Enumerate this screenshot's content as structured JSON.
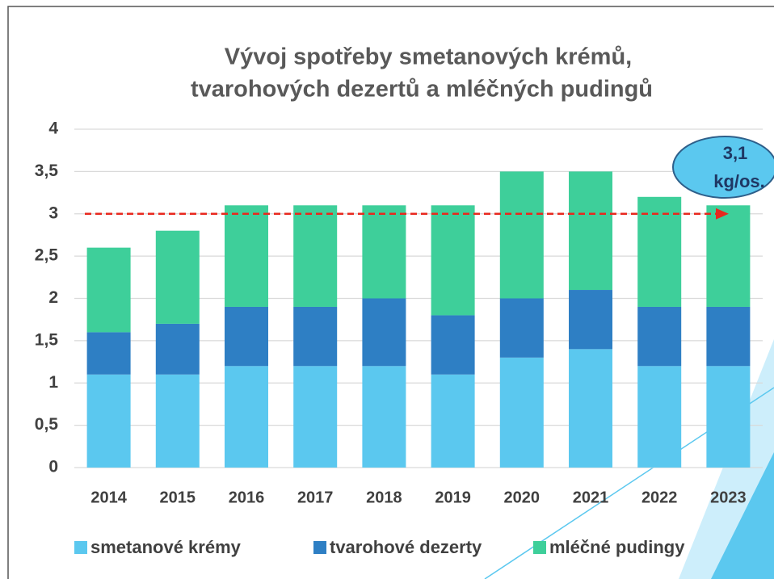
{
  "chart_data": {
    "type": "bar",
    "stacked": true,
    "title": [
      "Vývoj spotřeby smetanových krémů,",
      "tvarohových dezertů a mléčných pudingů"
    ],
    "categories": [
      "2014",
      "2015",
      "2016",
      "2017",
      "2018",
      "2019",
      "2020",
      "2021",
      "2022",
      "2023"
    ],
    "series": [
      {
        "name": "smetanové krémy",
        "color": "#5bc8ef",
        "values": [
          1.1,
          1.1,
          1.2,
          1.2,
          1.2,
          1.1,
          1.3,
          1.4,
          1.2,
          1.2
        ]
      },
      {
        "name": "tvarohové dezerty",
        "color": "#2e7fc4",
        "values": [
          0.5,
          0.6,
          0.7,
          0.7,
          0.8,
          0.7,
          0.7,
          0.7,
          0.7,
          0.7
        ]
      },
      {
        "name": "mléčné pudingy",
        "color": "#3ecf9a",
        "values": [
          1.0,
          1.1,
          1.2,
          1.2,
          1.1,
          1.3,
          1.5,
          1.4,
          1.3,
          1.2
        ]
      }
    ],
    "ylim": [
      0,
      4
    ],
    "yticks": [
      0,
      {
        "value": 0.5,
        "label": "0,5"
      },
      1,
      {
        "value": 1.5,
        "label": "1,5"
      },
      2,
      {
        "value": 2.5,
        "label": "2,5"
      },
      3,
      {
        "value": 3.5,
        "label": "3,5"
      },
      4
    ],
    "grid": true,
    "reference_line": {
      "value": 3,
      "color": "#e8281e"
    },
    "annotation": [
      "3,1",
      "kg/os."
    ],
    "legend": "bottom"
  }
}
